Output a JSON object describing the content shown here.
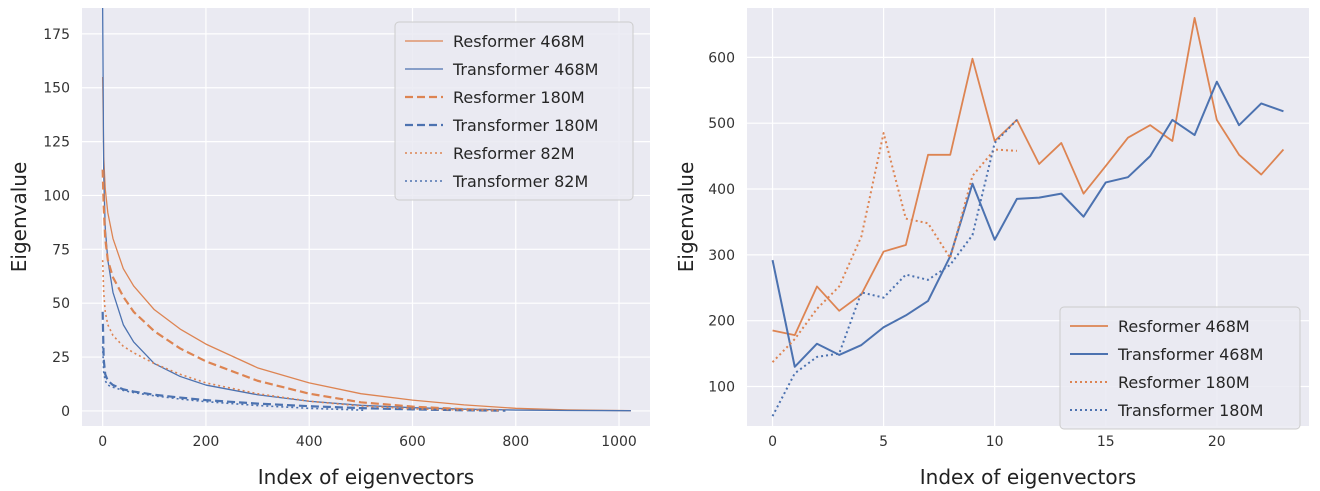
{
  "chart_data": [
    {
      "type": "line",
      "xlabel": "Index of eigenvectors",
      "ylabel": "Eigenvalue",
      "xlim": [
        -40,
        1060
      ],
      "ylim": [
        -7,
        187
      ],
      "xticks": [
        0,
        200,
        400,
        600,
        800,
        1000
      ],
      "yticks": [
        0,
        25,
        50,
        75,
        100,
        125,
        150,
        175
      ],
      "grid": true,
      "legend_position": "top-right",
      "series": [
        {
          "name": "Resformer 468M",
          "color": "#dd8452",
          "style": "solid",
          "width": 1.3,
          "x": [
            0,
            2,
            5,
            10,
            20,
            40,
            60,
            100,
            150,
            200,
            300,
            400,
            500,
            600,
            700,
            800,
            900,
            1023
          ],
          "y": [
            155,
            118,
            103,
            92,
            80,
            66,
            58,
            47,
            38,
            31,
            20,
            13,
            8,
            5,
            2.8,
            1.2,
            0.5,
            0.1
          ]
        },
        {
          "name": "Transformer 468M",
          "color": "#4c72b0",
          "style": "solid",
          "width": 1.3,
          "x": [
            0,
            2,
            5,
            10,
            20,
            40,
            60,
            100,
            150,
            200,
            300,
            400,
            500,
            600,
            700,
            800,
            900,
            1023
          ],
          "y": [
            187,
            110,
            85,
            70,
            55,
            40,
            32,
            22,
            16,
            12,
            7.5,
            4.5,
            2.6,
            1.5,
            0.8,
            0.4,
            0.2,
            0.1
          ]
        },
        {
          "name": "Resformer 180M",
          "color": "#dd8452",
          "style": "dashed",
          "width": 2.2,
          "x": [
            0,
            2,
            5,
            10,
            20,
            40,
            60,
            100,
            150,
            200,
            300,
            400,
            500,
            600,
            700,
            780
          ],
          "y": [
            112,
            95,
            80,
            70,
            62,
            53,
            46,
            37,
            29,
            23,
            14,
            8,
            4,
            2,
            0.8,
            0.3
          ]
        },
        {
          "name": "Transformer 180M",
          "color": "#4c72b0",
          "style": "dashed",
          "width": 2.2,
          "x": [
            0,
            2,
            5,
            10,
            20,
            40,
            60,
            100,
            150,
            200,
            300,
            400,
            500,
            600,
            700,
            780
          ],
          "y": [
            46,
            24,
            17,
            14,
            12,
            10,
            9,
            7.5,
            6.2,
            5,
            3.4,
            2.2,
            1.3,
            0.7,
            0.3,
            0.1
          ]
        },
        {
          "name": "Resformer 82M",
          "color": "#dd8452",
          "style": "dotted",
          "width": 1.6,
          "x": [
            0,
            2,
            5,
            10,
            20,
            40,
            60,
            100,
            150,
            200,
            300,
            400,
            500,
            600,
            700,
            770
          ],
          "y": [
            70,
            55,
            46,
            40,
            35,
            30,
            27,
            22,
            17,
            13,
            8,
            4.5,
            2.3,
            1,
            0.4,
            0.1
          ]
        },
        {
          "name": "Transformer 82M",
          "color": "#4c72b0",
          "style": "dotted",
          "width": 1.6,
          "x": [
            0,
            2,
            5,
            10,
            20,
            40,
            60,
            100,
            150,
            200,
            300,
            400,
            500,
            510
          ],
          "y": [
            30,
            18,
            14,
            12,
            11,
            9.5,
            8.5,
            7,
            5.5,
            4.3,
            2.5,
            1.2,
            0.4,
            0.3
          ]
        }
      ]
    },
    {
      "type": "line",
      "xlabel": "Index of eigenvectors",
      "ylabel": "Eigenvalue",
      "xlim": [
        -1.15,
        24.15
      ],
      "ylim": [
        40,
        675
      ],
      "xticks": [
        0,
        5,
        10,
        15,
        20
      ],
      "yticks": [
        100,
        200,
        300,
        400,
        500,
        600
      ],
      "grid": true,
      "legend_position": "bottom-right",
      "series": [
        {
          "name": "Resformer 468M",
          "color": "#dd8452",
          "style": "solid",
          "width": 1.8,
          "x": [
            0,
            1,
            2,
            3,
            4,
            5,
            6,
            7,
            8,
            9,
            10,
            11,
            12,
            13,
            14,
            15,
            16,
            17,
            18,
            19,
            20,
            21,
            22,
            23
          ],
          "y": [
            185,
            178,
            252,
            215,
            240,
            305,
            315,
            452,
            452,
            598,
            473,
            505,
            438,
            470,
            393,
            435,
            478,
            497,
            473,
            660,
            505,
            452,
            422,
            460
          ]
        },
        {
          "name": "Transformer 468M",
          "color": "#4c72b0",
          "style": "solid",
          "width": 2.0,
          "x": [
            0,
            1,
            2,
            3,
            4,
            5,
            6,
            7,
            8,
            9,
            10,
            11,
            12,
            13,
            14,
            15,
            16,
            17,
            18,
            19,
            20,
            21,
            22,
            23
          ],
          "y": [
            292,
            130,
            165,
            148,
            163,
            190,
            208,
            230,
            298,
            408,
            323,
            385,
            387,
            393,
            358,
            410,
            418,
            450,
            505,
            482,
            563,
            497,
            530,
            518
          ]
        },
        {
          "name": "Resformer 180M",
          "color": "#dd8452",
          "style": "dotted",
          "width": 2.0,
          "x": [
            0,
            1,
            2,
            3,
            4,
            5,
            6,
            7,
            8,
            9,
            10,
            11
          ],
          "y": [
            137,
            172,
            218,
            252,
            328,
            485,
            355,
            348,
            295,
            420,
            460,
            458
          ]
        },
        {
          "name": "Transformer 180M",
          "color": "#4c72b0",
          "style": "dotted",
          "width": 2.0,
          "x": [
            0,
            1,
            2,
            3,
            4,
            5,
            6,
            7,
            8,
            9,
            10,
            11
          ],
          "y": [
            55,
            120,
            145,
            150,
            243,
            235,
            270,
            262,
            285,
            330,
            470,
            505
          ]
        }
      ]
    }
  ]
}
